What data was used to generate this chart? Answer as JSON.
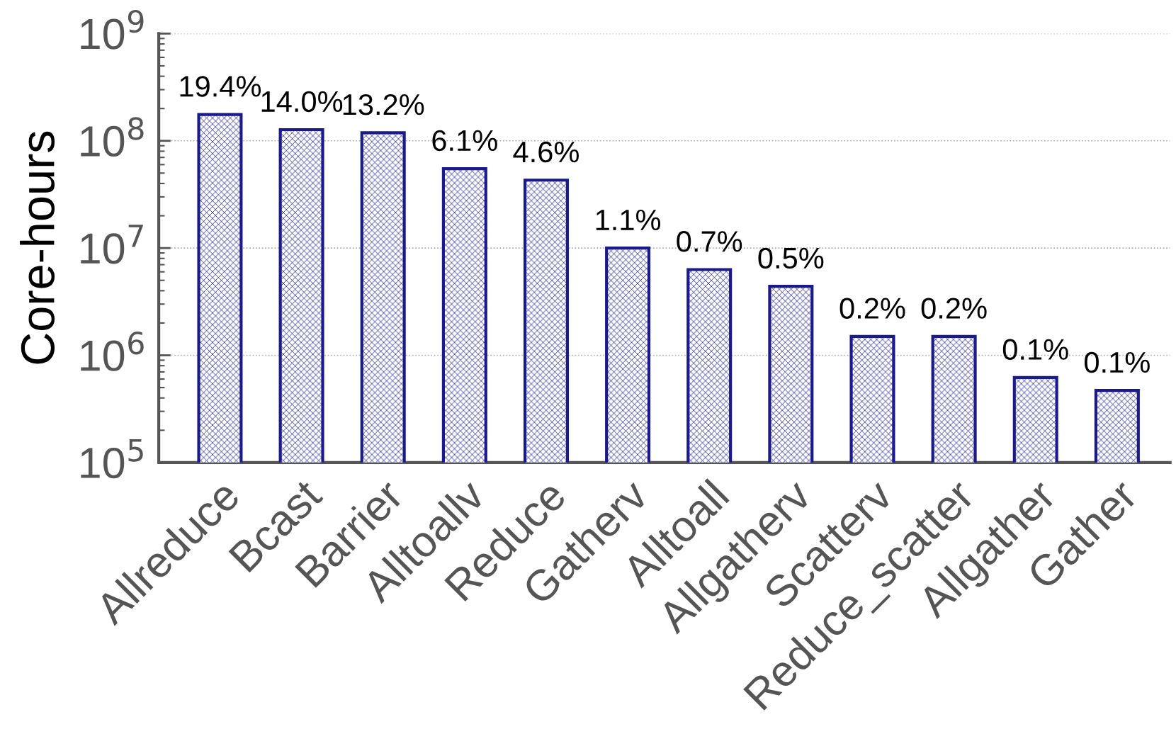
{
  "chart_data": {
    "type": "bar",
    "ylabel": "Core-hours",
    "categories": [
      "Allreduce",
      "Bcast",
      "Barrier",
      "Alltoallv",
      "Reduce",
      "Gatherv",
      "Alltoall",
      "Allgatherv",
      "Scatterv",
      "Reduce_scatter",
      "Allgather",
      "Gather"
    ],
    "values": [
      176000000,
      127000000,
      119000000,
      55000000,
      43000000,
      10000000,
      6300000,
      4400000,
      1500000,
      1500000,
      620000,
      470000
    ],
    "annotations": [
      {
        "text": "19.4%",
        "x": "Allreduce",
        "y": 176000000
      },
      {
        "text": "14.0%",
        "x": "Bcast",
        "y": 127000000
      },
      {
        "text": "13.2%",
        "x": "Barrier",
        "y": 119000000
      },
      {
        "text": "6.1%",
        "x": "Alltoallv",
        "y": 55000000
      },
      {
        "text": "4.6%",
        "x": "Reduce",
        "y": 43000000
      },
      {
        "text": "1.1%",
        "x": "Gatherv",
        "y": 10000000
      },
      {
        "text": "0.7%",
        "x": "Alltoall",
        "y": 6300000
      },
      {
        "text": "0.5%",
        "x": "Allgatherv",
        "y": 4400000
      },
      {
        "text": "0.2%",
        "x": "Scatterv",
        "y": 1500000
      },
      {
        "text": "0.2%",
        "x": "Reduce_scatter",
        "y": 1500000
      },
      {
        "text": "0.1%",
        "x": "Allgather",
        "y": 620000
      },
      {
        "text": "0.1%",
        "x": "Gather",
        "y": 470000
      }
    ],
    "color": "#1a1a8c",
    "log": "y",
    "ylim": [
      100000,
      1000000000
    ],
    "yticks": [
      {
        "value": 100000,
        "label": "10$^{5}$"
      },
      {
        "value": 1000000,
        "label": "10$^{6}$"
      },
      {
        "value": 10000000,
        "label": "10$^{7}$"
      },
      {
        "value": 100000000,
        "label": "10$^{8}$"
      },
      {
        "value": 1000000000,
        "label": "10$^{9}$"
      }
    ],
    "grid": "y"
  }
}
